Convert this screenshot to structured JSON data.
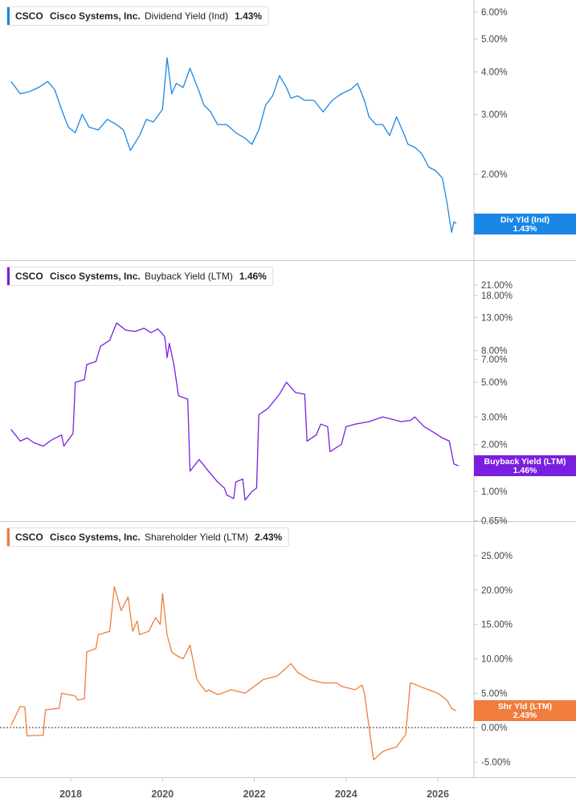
{
  "chart_data": [
    {
      "type": "line",
      "panel_key": "div",
      "ticker": "CSCO",
      "company": "Cisco Systems, Inc.",
      "metric": "Dividend Yield (Ind)",
      "current_value": "1.43%",
      "series_color": "#1a87e6",
      "badge_label": "Div Yld (Ind)",
      "badge_value": "1.43%",
      "y_scale": "log",
      "ylim": [
        1.3,
        6.4
      ],
      "y_ticks": [
        {
          "value": 6.0,
          "label": "6.00%"
        },
        {
          "value": 5.0,
          "label": "5.00%"
        },
        {
          "value": 4.0,
          "label": "4.00%"
        },
        {
          "value": 3.0,
          "label": "3.00%"
        },
        {
          "value": 2.0,
          "label": "2.00%"
        }
      ],
      "x": [
        2016.7,
        2016.9,
        2017.1,
        2017.3,
        2017.5,
        2017.65,
        2017.8,
        2017.95,
        2018.1,
        2018.25,
        2018.4,
        2018.6,
        2018.8,
        2019.0,
        2019.15,
        2019.3,
        2019.5,
        2019.65,
        2019.8,
        2020.0,
        2020.1,
        2020.2,
        2020.3,
        2020.45,
        2020.6,
        2020.8,
        2020.9,
        2021.05,
        2021.2,
        2021.4,
        2021.6,
        2021.8,
        2021.95,
        2022.1,
        2022.25,
        2022.4,
        2022.55,
        2022.7,
        2022.8,
        2022.95,
        2023.1,
        2023.3,
        2023.5,
        2023.7,
        2023.9,
        2024.1,
        2024.25,
        2024.4,
        2024.5,
        2024.65,
        2024.8,
        2024.95,
        2025.1,
        2025.25,
        2025.35,
        2025.5,
        2025.65,
        2025.8,
        2025.95,
        2026.1,
        2026.2,
        2026.3,
        2026.35,
        2026.4
      ],
      "y": [
        3.75,
        3.45,
        3.5,
        3.6,
        3.75,
        3.55,
        3.1,
        2.75,
        2.65,
        3.0,
        2.75,
        2.7,
        2.9,
        2.8,
        2.7,
        2.35,
        2.6,
        2.9,
        2.85,
        3.1,
        4.4,
        3.45,
        3.7,
        3.6,
        4.1,
        3.5,
        3.2,
        3.05,
        2.8,
        2.8,
        2.65,
        2.55,
        2.45,
        2.7,
        3.2,
        3.4,
        3.9,
        3.6,
        3.35,
        3.4,
        3.3,
        3.3,
        3.05,
        3.3,
        3.45,
        3.55,
        3.7,
        3.3,
        2.95,
        2.8,
        2.8,
        2.6,
        2.95,
        2.65,
        2.45,
        2.4,
        2.3,
        2.1,
        2.05,
        1.95,
        1.65,
        1.35,
        1.45,
        1.43
      ]
    },
    {
      "type": "line",
      "panel_key": "buy",
      "ticker": "CSCO",
      "company": "Cisco Systems, Inc.",
      "metric": "Buyback Yield (LTM)",
      "current_value": "1.46%",
      "series_color": "#7a1fe0",
      "badge_label": "Buyback Yield (LTM)",
      "badge_value": "1.46%",
      "y_scale": "log",
      "ylim": [
        0.62,
        28
      ],
      "y_ticks": [
        {
          "value": 21.0,
          "label": "21.00%"
        },
        {
          "value": 18.0,
          "label": "18.00%"
        },
        {
          "value": 13.0,
          "label": "13.00%"
        },
        {
          "value": 8.0,
          "label": "8.00%"
        },
        {
          "value": 7.0,
          "label": "7.00%"
        },
        {
          "value": 5.0,
          "label": "5.00%"
        },
        {
          "value": 3.0,
          "label": "3.00%"
        },
        {
          "value": 2.0,
          "label": "2.00%"
        },
        {
          "value": 1.0,
          "label": "1.00%"
        },
        {
          "value": 0.65,
          "label": "0.65%"
        }
      ],
      "x": [
        2016.7,
        2016.9,
        2017.05,
        2017.2,
        2017.4,
        2017.6,
        2017.8,
        2017.85,
        2018.05,
        2018.1,
        2018.3,
        2018.35,
        2018.55,
        2018.65,
        2018.85,
        2019.0,
        2019.2,
        2019.4,
        2019.6,
        2019.75,
        2019.9,
        2020.05,
        2020.1,
        2020.15,
        2020.25,
        2020.35,
        2020.55,
        2020.6,
        2020.8,
        2021.0,
        2021.2,
        2021.35,
        2021.4,
        2021.55,
        2021.6,
        2021.75,
        2021.8,
        2021.95,
        2022.05,
        2022.1,
        2022.3,
        2022.55,
        2022.7,
        2022.9,
        2023.1,
        2023.15,
        2023.35,
        2023.45,
        2023.6,
        2023.65,
        2023.9,
        2024.0,
        2024.2,
        2024.5,
        2024.8,
        2025.0,
        2025.2,
        2025.4,
        2025.5,
        2025.7,
        2025.9,
        2026.1,
        2026.25,
        2026.35,
        2026.45
      ],
      "y": [
        2.5,
        2.1,
        2.2,
        2.05,
        1.95,
        2.15,
        2.3,
        1.95,
        2.35,
        5.0,
        5.2,
        6.5,
        6.8,
        8.5,
        9.3,
        12.0,
        10.8,
        10.6,
        11.1,
        10.4,
        11.0,
        9.8,
        7.2,
        8.9,
        6.5,
        4.1,
        3.9,
        1.35,
        1.6,
        1.35,
        1.15,
        1.05,
        0.95,
        0.9,
        1.15,
        1.2,
        0.88,
        1.0,
        1.05,
        3.1,
        3.4,
        4.2,
        5.0,
        4.3,
        4.2,
        2.1,
        2.3,
        2.7,
        2.6,
        1.8,
        2.0,
        2.6,
        2.7,
        2.8,
        3.0,
        2.9,
        2.8,
        2.85,
        3.0,
        2.6,
        2.4,
        2.2,
        2.1,
        1.5,
        1.46
      ]
    },
    {
      "type": "line",
      "panel_key": "shr",
      "ticker": "CSCO",
      "company": "Cisco Systems, Inc.",
      "metric": "Shareholder Yield (LTM)",
      "current_value": "2.43%",
      "series_color": "#f07d3c",
      "badge_label": "Shr Yld (LTM)",
      "badge_value": "2.43%",
      "y_scale": "linear",
      "ylim": [
        -7.0,
        27.0
      ],
      "zero_line": true,
      "y_ticks": [
        {
          "value": 25.0,
          "label": "25.00%"
        },
        {
          "value": 20.0,
          "label": "20.00%"
        },
        {
          "value": 15.0,
          "label": "15.00%"
        },
        {
          "value": 10.0,
          "label": "10.00%"
        },
        {
          "value": 5.0,
          "label": "5.00%"
        },
        {
          "value": 0.0,
          "label": "0.00%"
        },
        {
          "value": -5.0,
          "label": "-5.00%"
        }
      ],
      "x": [
        2016.7,
        2016.9,
        2017.0,
        2017.05,
        2017.4,
        2017.45,
        2017.75,
        2017.8,
        2018.1,
        2018.15,
        2018.3,
        2018.35,
        2018.55,
        2018.6,
        2018.85,
        2018.95,
        2019.1,
        2019.25,
        2019.35,
        2019.45,
        2019.5,
        2019.7,
        2019.85,
        2019.95,
        2020.0,
        2020.1,
        2020.2,
        2020.3,
        2020.45,
        2020.6,
        2020.75,
        2020.8,
        2020.95,
        2021.0,
        2021.2,
        2021.3,
        2021.5,
        2021.8,
        2022.0,
        2022.2,
        2022.5,
        2022.8,
        2022.95,
        2023.2,
        2023.5,
        2023.8,
        2023.9,
        2024.2,
        2024.35,
        2024.4,
        2024.6,
        2024.8,
        2024.9,
        2025.1,
        2025.3,
        2025.4,
        2025.5,
        2025.6,
        2025.8,
        2026.0,
        2026.2,
        2026.3,
        2026.4
      ],
      "y": [
        0.3,
        3.1,
        3.0,
        -1.2,
        -1.1,
        2.6,
        2.8,
        5.0,
        4.6,
        4.0,
        4.2,
        11.0,
        11.5,
        13.5,
        14.0,
        20.5,
        17.0,
        19.0,
        14.0,
        15.5,
        13.5,
        14.0,
        16.0,
        15.0,
        19.5,
        13.5,
        11.0,
        10.5,
        10.0,
        12.0,
        7.0,
        6.5,
        5.2,
        5.5,
        4.8,
        5.0,
        5.5,
        5.0,
        6.0,
        7.0,
        7.5,
        9.3,
        8.0,
        7.0,
        6.5,
        6.5,
        6.0,
        5.5,
        6.2,
        5.0,
        -4.7,
        -3.5,
        -3.2,
        -2.8,
        -1.0,
        6.5,
        6.3,
        6.0,
        5.5,
        5.0,
        4.0,
        2.8,
        2.43
      ]
    }
  ],
  "x_axis": {
    "ticks": [
      {
        "value": 2018,
        "label": "2018"
      },
      {
        "value": 2020,
        "label": "2020"
      },
      {
        "value": 2022,
        "label": "2022"
      },
      {
        "value": 2024,
        "label": "2024"
      },
      {
        "value": 2026,
        "label": "2026"
      }
    ]
  }
}
